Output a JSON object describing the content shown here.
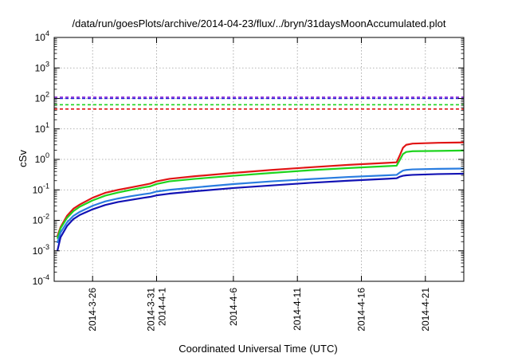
{
  "chart_data": {
    "type": "line",
    "title": "/data/run/goesPlots/archive/2014-04-23/flux/../bryn/31daysMoonAccumulated.plot",
    "xlabel": "Coordinated Universal Time (UTC)",
    "ylabel": "cSv",
    "yscale": "log",
    "xlim": [
      "2014-03-23",
      "2014-04-24"
    ],
    "ylim": [
      0.0001,
      10000
    ],
    "grid": true,
    "legend": "none",
    "x_ticks": [
      {
        "date": "2014-03-26",
        "lines": [
          "2014-3-26"
        ]
      },
      {
        "date": "2014-03-31",
        "lines": [
          "2014-3-31",
          "2014-4-1"
        ]
      },
      {
        "date": "2014-04-06",
        "lines": [
          "2014-4-6"
        ]
      },
      {
        "date": "2014-04-11",
        "lines": [
          "2014-4-11"
        ]
      },
      {
        "date": "2014-04-16",
        "lines": [
          "2014-4-16"
        ]
      },
      {
        "date": "2014-04-21",
        "lines": [
          "2014-4-21"
        ]
      }
    ],
    "y_ticks": [
      {
        "value": 0.0001,
        "base": "10",
        "exp": "-4"
      },
      {
        "value": 0.001,
        "base": "10",
        "exp": "-3"
      },
      {
        "value": 0.01,
        "base": "10",
        "exp": "-2"
      },
      {
        "value": 0.1,
        "base": "10",
        "exp": "-1"
      },
      {
        "value": 1,
        "base": "10",
        "exp": "0"
      },
      {
        "value": 10,
        "base": "10",
        "exp": "1"
      },
      {
        "value": 100,
        "base": "10",
        "exp": "2"
      },
      {
        "value": 1000,
        "base": "10",
        "exp": "3"
      },
      {
        "value": 10000,
        "base": "10",
        "exp": "4"
      }
    ],
    "thresholds": [
      {
        "value": 110,
        "color": "#9b30d9"
      },
      {
        "value": 100,
        "color": "#1a1ad4"
      },
      {
        "value": 62,
        "color": "#1ed41e"
      },
      {
        "value": 45,
        "color": "#e01515"
      }
    ],
    "series": [
      {
        "color": "#e01515",
        "x": [
          "2014-03-23T06:00",
          "2014-03-23T12:00",
          "2014-03-24",
          "2014-03-24T12:00",
          "2014-03-25",
          "2014-03-26",
          "2014-03-27",
          "2014-03-28",
          "2014-03-29",
          "2014-03-30",
          "2014-03-30T12:00",
          "2014-03-31",
          "2014-04-01",
          "2014-04-03",
          "2014-04-06",
          "2014-04-09",
          "2014-04-12",
          "2014-04-15",
          "2014-04-18",
          "2014-04-18T18:00",
          "2014-04-19",
          "2014-04-19T06:00",
          "2014-04-19T12:00",
          "2014-04-20",
          "2014-04-22",
          "2014-04-24"
        ],
        "values": [
          0.003,
          0.006,
          0.014,
          0.024,
          0.033,
          0.055,
          0.08,
          0.1,
          0.12,
          0.145,
          0.16,
          0.19,
          0.23,
          0.28,
          0.36,
          0.45,
          0.55,
          0.66,
          0.77,
          0.8,
          1.35,
          2.4,
          3.0,
          3.3,
          3.5,
          3.6
        ]
      },
      {
        "color": "#1ed41e",
        "x": [
          "2014-03-23T06:00",
          "2014-03-23T12:00",
          "2014-03-24",
          "2014-03-24T12:00",
          "2014-03-25",
          "2014-03-26",
          "2014-03-27",
          "2014-03-28",
          "2014-03-29",
          "2014-03-30",
          "2014-03-30T12:00",
          "2014-03-31",
          "2014-04-01",
          "2014-04-03",
          "2014-04-06",
          "2014-04-09",
          "2014-04-12",
          "2014-04-15",
          "2014-04-18",
          "2014-04-18T18:00",
          "2014-04-19",
          "2014-04-19T06:00",
          "2014-04-19T12:00",
          "2014-04-20",
          "2014-04-22",
          "2014-04-24"
        ],
        "values": [
          0.0025,
          0.0055,
          0.012,
          0.02,
          0.028,
          0.045,
          0.065,
          0.082,
          0.1,
          0.12,
          0.13,
          0.155,
          0.19,
          0.23,
          0.29,
          0.36,
          0.44,
          0.52,
          0.6,
          0.62,
          0.95,
          1.5,
          1.75,
          1.85,
          1.9,
          1.95
        ]
      },
      {
        "color": "#2a7de0",
        "x": [
          "2014-03-23T06:00",
          "2014-03-23T12:00",
          "2014-03-24",
          "2014-03-24T12:00",
          "2014-03-25",
          "2014-03-26",
          "2014-03-27",
          "2014-03-28",
          "2014-03-29",
          "2014-03-30",
          "2014-03-30T12:00",
          "2014-03-31",
          "2014-04-01",
          "2014-04-03",
          "2014-04-06",
          "2014-04-09",
          "2014-04-12",
          "2014-04-15",
          "2014-04-18",
          "2014-04-18T18:00",
          "2014-04-19",
          "2014-04-19T06:00",
          "2014-04-19T12:00",
          "2014-04-20",
          "2014-04-22",
          "2014-04-24"
        ],
        "values": [
          0.0018,
          0.004,
          0.0085,
          0.014,
          0.019,
          0.03,
          0.042,
          0.052,
          0.062,
          0.072,
          0.077,
          0.088,
          0.1,
          0.12,
          0.155,
          0.19,
          0.225,
          0.265,
          0.3,
          0.31,
          0.37,
          0.43,
          0.45,
          0.47,
          0.49,
          0.5
        ]
      },
      {
        "color": "#1212b4",
        "x": [
          "2014-03-23T06:00",
          "2014-03-23T12:00",
          "2014-03-24",
          "2014-03-24T12:00",
          "2014-03-25",
          "2014-03-26",
          "2014-03-27",
          "2014-03-28",
          "2014-03-29",
          "2014-03-30",
          "2014-03-30T12:00",
          "2014-03-31",
          "2014-04-01",
          "2014-04-03",
          "2014-04-06",
          "2014-04-09",
          "2014-04-12",
          "2014-04-15",
          "2014-04-18",
          "2014-04-18T18:00",
          "2014-04-19",
          "2014-04-19T06:00",
          "2014-04-19T12:00",
          "2014-04-20",
          "2014-04-22",
          "2014-04-24"
        ],
        "values": [
          0.001,
          0.0028,
          0.0065,
          0.011,
          0.015,
          0.023,
          0.032,
          0.04,
          0.047,
          0.055,
          0.059,
          0.066,
          0.075,
          0.09,
          0.115,
          0.14,
          0.17,
          0.2,
          0.23,
          0.24,
          0.27,
          0.29,
          0.3,
          0.31,
          0.33,
          0.34
        ]
      }
    ]
  }
}
